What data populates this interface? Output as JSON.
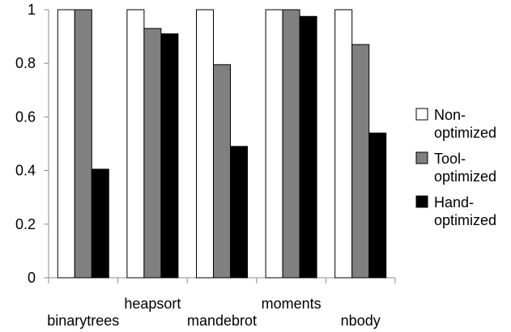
{
  "chart_data": {
    "type": "bar",
    "categories": [
      "binarytrees",
      "heapsort",
      "mandebrot",
      "moments",
      "nbody"
    ],
    "series": [
      {
        "name": "Non-optimized",
        "values": [
          1.0,
          1.0,
          1.0,
          1.0,
          1.0
        ],
        "color": "#ffffff",
        "legend_lines": [
          "Non-",
          "optimized"
        ]
      },
      {
        "name": "Tool-optimized",
        "values": [
          1.0,
          0.93,
          0.795,
          1.0,
          0.87
        ],
        "color": "#808080",
        "legend_lines": [
          "Tool-",
          "optimized"
        ]
      },
      {
        "name": "Hand-optimized",
        "values": [
          0.405,
          0.91,
          0.49,
          0.975,
          0.54
        ],
        "color": "#000000",
        "legend_lines": [
          "Hand-",
          "optimized"
        ]
      }
    ],
    "ylim": [
      0,
      1
    ],
    "yticks": [
      0,
      0.2,
      0.4,
      0.6,
      0.8,
      1
    ],
    "ytick_labels": [
      "0",
      "0.2",
      "0.4",
      "0.6",
      "0.8",
      "1"
    ],
    "legend_position": "right",
    "grid": false
  }
}
